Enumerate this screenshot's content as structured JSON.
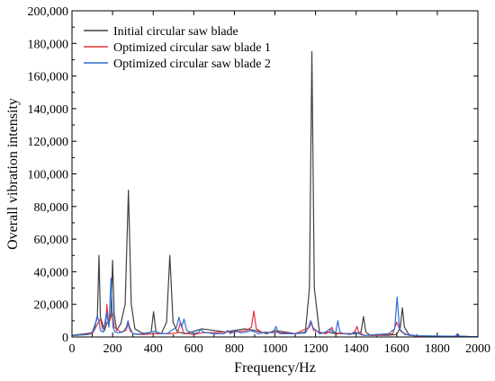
{
  "chart_data": {
    "type": "line",
    "title": "",
    "xlabel": "Frequency/Hz",
    "ylabel": "Overall vibration intensity",
    "xlim": [
      0,
      2000
    ],
    "ylim": [
      0,
      200000
    ],
    "grid": false,
    "legend_position": "top-left",
    "x_ticks": [
      0,
      200,
      400,
      600,
      800,
      1000,
      1200,
      1400,
      1600,
      1800,
      2000
    ],
    "x_tick_labels": [
      "0",
      "200",
      "400",
      "600",
      "800",
      "1000",
      "1200",
      "1400",
      "1600",
      "1800",
      "2000"
    ],
    "y_ticks": [
      0,
      20000,
      40000,
      60000,
      80000,
      100000,
      120000,
      140000,
      160000,
      180000,
      200000
    ],
    "y_tick_labels": [
      "0",
      "20,000",
      "40,000",
      "60,000",
      "80,000",
      "100,000",
      "120,000",
      "140,000",
      "160,000",
      "180,000",
      "200,000"
    ],
    "series": [
      {
        "name": "Initial circular saw blade",
        "color": "#404040",
        "x": [
          0,
          100,
          125,
          133,
          140,
          160,
          170,
          180,
          192,
          200,
          208,
          220,
          240,
          262,
          278,
          292,
          310,
          350,
          390,
          402,
          414,
          440,
          466,
          482,
          498,
          520,
          560,
          640,
          760,
          800,
          850,
          900,
          960,
          1000,
          1100,
          1150,
          1170,
          1182,
          1194,
          1220,
          1240,
          1260,
          1300,
          1400,
          1424,
          1436,
          1448,
          1470,
          1500,
          1550,
          1600,
          1618,
          1628,
          1638,
          1660,
          1700,
          1850,
          1890,
          1900,
          1910,
          1950,
          2000
        ],
        "y": [
          1000,
          2500,
          12000,
          50000,
          12000,
          4000,
          8000,
          10000,
          14000,
          47000,
          14000,
          4000,
          8000,
          20000,
          90000,
          20000,
          5000,
          2000,
          3000,
          15500,
          3000,
          2000,
          9000,
          50000,
          9000,
          3000,
          2000,
          5000,
          3000,
          4000,
          5000,
          4000,
          2000,
          4000,
          2000,
          3000,
          30000,
          175000,
          30000,
          2000,
          2500,
          3000,
          2000,
          2000,
          3000,
          12500,
          3000,
          1000,
          1000,
          1000,
          1500,
          6000,
          18000,
          6000,
          1500,
          500,
          500,
          500,
          2000,
          500,
          300,
          200
        ]
      },
      {
        "name": "Optimized circular saw blade 1",
        "color": "#e8303a",
        "x": [
          0,
          100,
          130,
          140,
          150,
          165,
          172,
          180,
          192,
          200,
          208,
          240,
          266,
          276,
          286,
          300,
          350,
          400,
          480,
          520,
          535,
          550,
          600,
          640,
          760,
          800,
          860,
          884,
          896,
          908,
          940,
          1000,
          1010,
          1030,
          1100,
          1170,
          1180,
          1190,
          1250,
          1270,
          1280,
          1290,
          1320,
          1380,
          1396,
          1404,
          1412,
          1440,
          1500,
          1580,
          1600,
          1612,
          1624,
          1660,
          1700,
          2000
        ],
        "y": [
          800,
          2000,
          9000,
          11000,
          5000,
          7000,
          20000,
          8000,
          12000,
          15000,
          6000,
          3000,
          4000,
          8000,
          4000,
          2000,
          1500,
          2000,
          2000,
          2500,
          9000,
          2500,
          1500,
          2500,
          3000,
          3000,
          4000,
          6000,
          16000,
          5000,
          2500,
          3000,
          3000,
          2500,
          2000,
          6000,
          9000,
          4000,
          2000,
          3500,
          6000,
          3000,
          2000,
          2000,
          4000,
          6500,
          3000,
          1000,
          1000,
          2000,
          9000,
          5500,
          3000,
          1000,
          500,
          200
        ]
      },
      {
        "name": "Optimized circular saw blade 2",
        "color": "#2e6fd6",
        "x": [
          0,
          80,
          110,
          124,
          132,
          140,
          155,
          170,
          182,
          192,
          202,
          212,
          230,
          250,
          268,
          276,
          284,
          300,
          330,
          350,
          370,
          390,
          405,
          440,
          470,
          490,
          515,
          527,
          540,
          552,
          565,
          600,
          626,
          636,
          646,
          700,
          750,
          766,
          780,
          810,
          830,
          860,
          880,
          920,
          950,
          990,
          1005,
          1015,
          1030,
          1100,
          1150,
          1166,
          1176,
          1186,
          1220,
          1250,
          1270,
          1286,
          1300,
          1310,
          1320,
          1340,
          1370,
          1398,
          1420,
          1440,
          1500,
          1560,
          1590,
          1602,
          1614,
          1640,
          1700,
          1850,
          1890,
          1900,
          1910,
          1950,
          2000
        ],
        "y": [
          800,
          1500,
          4000,
          13000,
          10000,
          4000,
          3000,
          15000,
          6000,
          36000,
          6000,
          3000,
          2500,
          3000,
          6000,
          10000,
          6000,
          2000,
          1500,
          2500,
          2000,
          3000,
          3500,
          2000,
          2000,
          4000,
          6000,
          12000,
          6000,
          11000,
          4000,
          2000,
          3000,
          5000,
          3000,
          2000,
          2000,
          4000,
          2000,
          4000,
          2500,
          3000,
          4000,
          2000,
          3000,
          2500,
          6500,
          2500,
          2000,
          2000,
          2500,
          6000,
          10000,
          6000,
          2000,
          3000,
          5000,
          3000,
          3000,
          10000,
          3000,
          2000,
          1500,
          3000,
          1500,
          1000,
          1500,
          2000,
          5000,
          24500,
          5000,
          1500,
          800,
          500,
          500,
          1500,
          500,
          300,
          200
        ]
      }
    ]
  }
}
